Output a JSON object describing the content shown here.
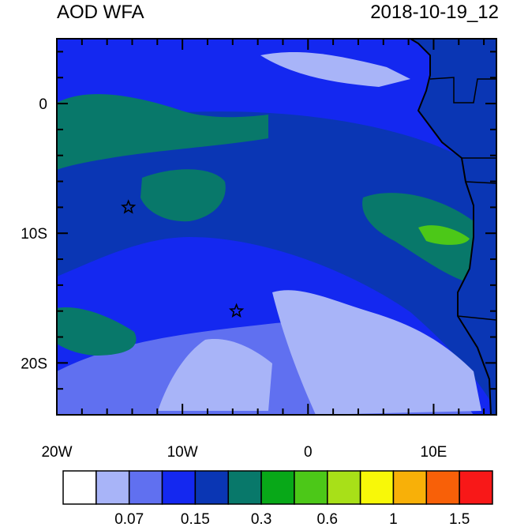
{
  "title_left": "AOD WFA",
  "title_right": "2018-10-19_12",
  "axes": {
    "x_ticks": [
      {
        "label": "20W",
        "lon": -20
      },
      {
        "label": "10W",
        "lon": -10
      },
      {
        "label": "0",
        "lon": 0
      },
      {
        "label": "10E",
        "lon": 10
      }
    ],
    "y_ticks": [
      {
        "label": "0",
        "lat": 0
      },
      {
        "label": "10S",
        "lat": -10
      },
      {
        "label": "20S",
        "lat": -20
      }
    ],
    "lon_range": [
      -20,
      15
    ],
    "lat_range": [
      -24,
      5
    ]
  },
  "colorbar": {
    "colors": [
      "#ffffff",
      "#a8b4f8",
      "#6070f0",
      "#1428f0",
      "#0a36b4",
      "#08786a",
      "#08a818",
      "#4cc818",
      "#a8e018",
      "#f8f808",
      "#f8b008",
      "#f86008",
      "#f81818"
    ],
    "labels": [
      {
        "text": "0.07",
        "after_box": 2
      },
      {
        "text": "0.15",
        "after_box": 4
      },
      {
        "text": "0.3",
        "after_box": 6
      },
      {
        "text": "0.6",
        "after_box": 8
      },
      {
        "text": "1",
        "after_box": 10
      },
      {
        "text": "1.5",
        "after_box": 12
      }
    ]
  },
  "markers": [
    {
      "name": "star-marker-west",
      "lon": -14.3,
      "lat": -8
    },
    {
      "name": "star-marker-south",
      "lon": -5.7,
      "lat": -16
    }
  ],
  "field_colors": {
    "background": "#1428f0",
    "plume": "#0a36b4",
    "high": "#08786a",
    "peak": "#4cc818",
    "low": "#6070f0",
    "very_low": "#a8b4f8"
  }
}
